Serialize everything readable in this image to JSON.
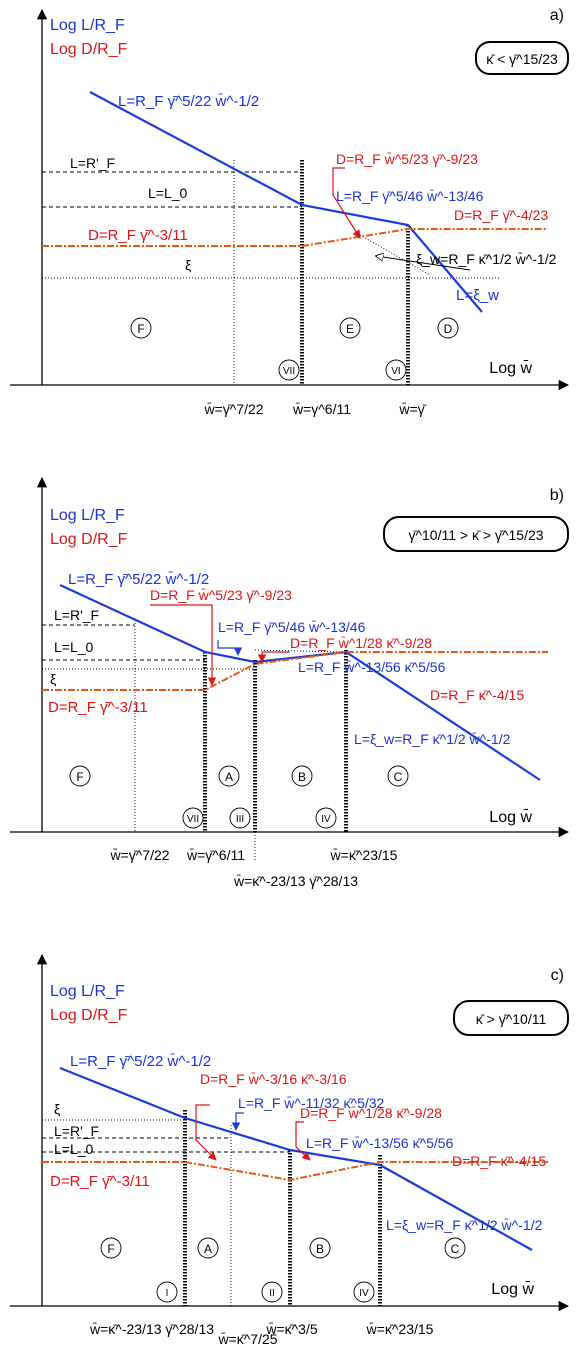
{
  "panels": [
    {
      "tag": "a)",
      "condition": "κ̄ < γ̄^15/23",
      "ylabel_L": "Log L/R_F",
      "ylabel_D": "Log D/R_F",
      "xlabel": "Log w̄",
      "labels": {
        "L_upper": "L=R_F γ̄^5/22 w̄^-1/2",
        "L_mid": "L=R_F γ̄^5/46 w̄^-13/46",
        "L_xi": "L=ξ_w",
        "D_left": "D=R_F γ̄^-3/11",
        "D_mid": "D=R_F w̄^5/23 γ̄^-9/23",
        "D_right": "D=R_F γ̄^-4/23",
        "xi_w": "ξ_w=R_F κ̄^1/2 w̄^-1/2",
        "LRF": "L=R'_F",
        "L0": "L=L_0",
        "xi": "ξ"
      },
      "regions": [
        "F",
        "E",
        "D"
      ],
      "romans": [
        "VII",
        "VI"
      ],
      "xticks": [
        "w̄=γ̄^7/22",
        "w̄=γ^6/11",
        "w̄=γ̄"
      ]
    },
    {
      "tag": "b)",
      "condition": "γ̄^10/11 > κ̄ > γ̄^15/23",
      "ylabel_L": "Log L/R_F",
      "ylabel_D": "Log D/R_F",
      "xlabel": "Log w̄",
      "labels": {
        "L_upper": "L=R_F γ̄^5/22 w̄^-1/2",
        "L_mid": "L=R_F γ̄^5/46 w̄^-13/46",
        "L_low": "L=R_F w̄^-13/56 κ̄^5/56",
        "L_xi": "L=ξ_w=R_F κ̄^1/2 w̄^-1/2",
        "D_left": "D=R_F γ̄^-3/11",
        "D_mid": "D=R_F w̄^5/23 γ̄^-9/23",
        "D_mid2": "D=R_F w̄^1/28 κ̄^-9/28",
        "D_right": "D=R_F κ̄^-4/15",
        "LRF": "L=R'_F",
        "L0": "L=L_0",
        "xi": "ξ"
      },
      "regions": [
        "F",
        "A",
        "B",
        "C"
      ],
      "romans": [
        "VII",
        "III",
        "IV"
      ],
      "xticks": [
        "w̄=γ̄^7/22",
        "w̄=γ̄^6/11",
        "w̄=κ̄^23/15",
        "w̄=κ̄^-23/13 γ̄^28/13"
      ]
    },
    {
      "tag": "c)",
      "condition": "κ̄ > γ̄^10/11",
      "ylabel_L": "Log L/R_F",
      "ylabel_D": "Log D/R_F",
      "xlabel": "Log w̄",
      "labels": {
        "L_upper": "L=R_F γ̄^5/22 w̄^-1/2",
        "L_mid": "L=R_F w̄^-11/32 κ̄^5/32",
        "L_low": "L=R_F w̄^-13/56 κ̄^5/56",
        "L_xi": "L=ξ_w=R_F κ̄^1/2 w̄^-1/2",
        "D_left": "D=R_F γ̄^-3/11",
        "D_mid": "D=R_F w̄^-3/16 κ̄^-3/16",
        "D_mid2": "D=R_F w̄^1/28 κ̄^-9/28",
        "D_right": "D=R_F κ̄^-4/15",
        "LRF": "L=R'_F",
        "L0": "L=L_0",
        "xi": "ξ"
      },
      "regions": [
        "F",
        "A",
        "B",
        "C"
      ],
      "romans": [
        "I",
        "II",
        "IV"
      ],
      "xticks": [
        "w̄=κ̄^-23/13 γ̄^28/13",
        "w̄=κ̄^3/5",
        "w̄=κ̄^23/15",
        "w̄=κ̄^7/25"
      ]
    }
  ]
}
